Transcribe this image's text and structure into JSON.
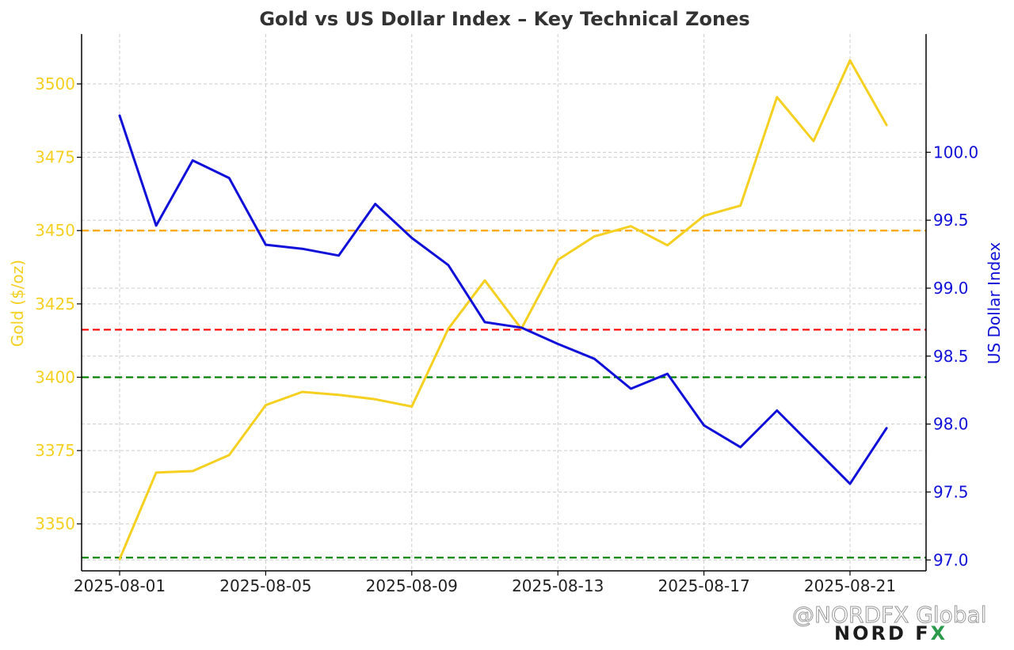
{
  "chart_data": {
    "type": "line",
    "title": "Gold vs US Dollar Index – Key Technical Zones",
    "ylabel_left": "Gold ($/oz)",
    "ylabel_right": "US Dollar Index",
    "x_ticks": [
      "2025-08-01",
      "2025-08-05",
      "2025-08-09",
      "2025-08-13",
      "2025-08-17",
      "2025-08-21"
    ],
    "x": [
      "2025-08-01",
      "2025-08-02",
      "2025-08-03",
      "2025-08-04",
      "2025-08-05",
      "2025-08-06",
      "2025-08-07",
      "2025-08-08",
      "2025-08-09",
      "2025-08-10",
      "2025-08-11",
      "2025-08-12",
      "2025-08-13",
      "2025-08-14",
      "2025-08-15",
      "2025-08-16",
      "2025-08-17",
      "2025-08-18",
      "2025-08-19",
      "2025-08-20",
      "2025-08-21",
      "2025-08-22"
    ],
    "y_left_ticks": [
      3350,
      3375,
      3400,
      3425,
      3450,
      3475,
      3500
    ],
    "y_right_ticks": [
      "97.0",
      "97.5",
      "98.0",
      "98.5",
      "99.0",
      "99.5",
      "100.0"
    ],
    "ylim_left": [
      3334,
      3517
    ],
    "ylim_right": [
      96.92,
      100.87
    ],
    "grid": true,
    "series": [
      {
        "axis": "left",
        "color": "#f5d020",
        "values": [
          3338,
          3367.5,
          3368,
          3373.5,
          3390.5,
          3395,
          3394,
          3392.5,
          3390,
          3416.5,
          3433,
          3416.5,
          3440,
          3448,
          3451.5,
          3445,
          3455,
          3458.5,
          3495.5,
          3480.5,
          3508,
          3486
        ]
      },
      {
        "axis": "right",
        "color": "#1010d8",
        "values": [
          100.27,
          99.46,
          99.94,
          99.81,
          99.32,
          99.29,
          99.24,
          99.62,
          99.37,
          99.17,
          98.75,
          98.71,
          98.59,
          98.48,
          98.26,
          98.37,
          97.99,
          97.83,
          98.1,
          97.83,
          97.56,
          97.97
        ]
      }
    ],
    "hlines": [
      {
        "value": 3450,
        "axis": "left",
        "color": "#ffa500"
      },
      {
        "value": 3416.2,
        "axis": "left",
        "color": "#ff0000"
      },
      {
        "value": 3400,
        "axis": "left",
        "color": "#008000"
      },
      {
        "value": 3338.5,
        "axis": "left",
        "color": "#008000"
      }
    ]
  },
  "watermark": {
    "handle": "@NORDFX Global",
    "logo_main": "NORD F",
    "logo_x": "X"
  }
}
